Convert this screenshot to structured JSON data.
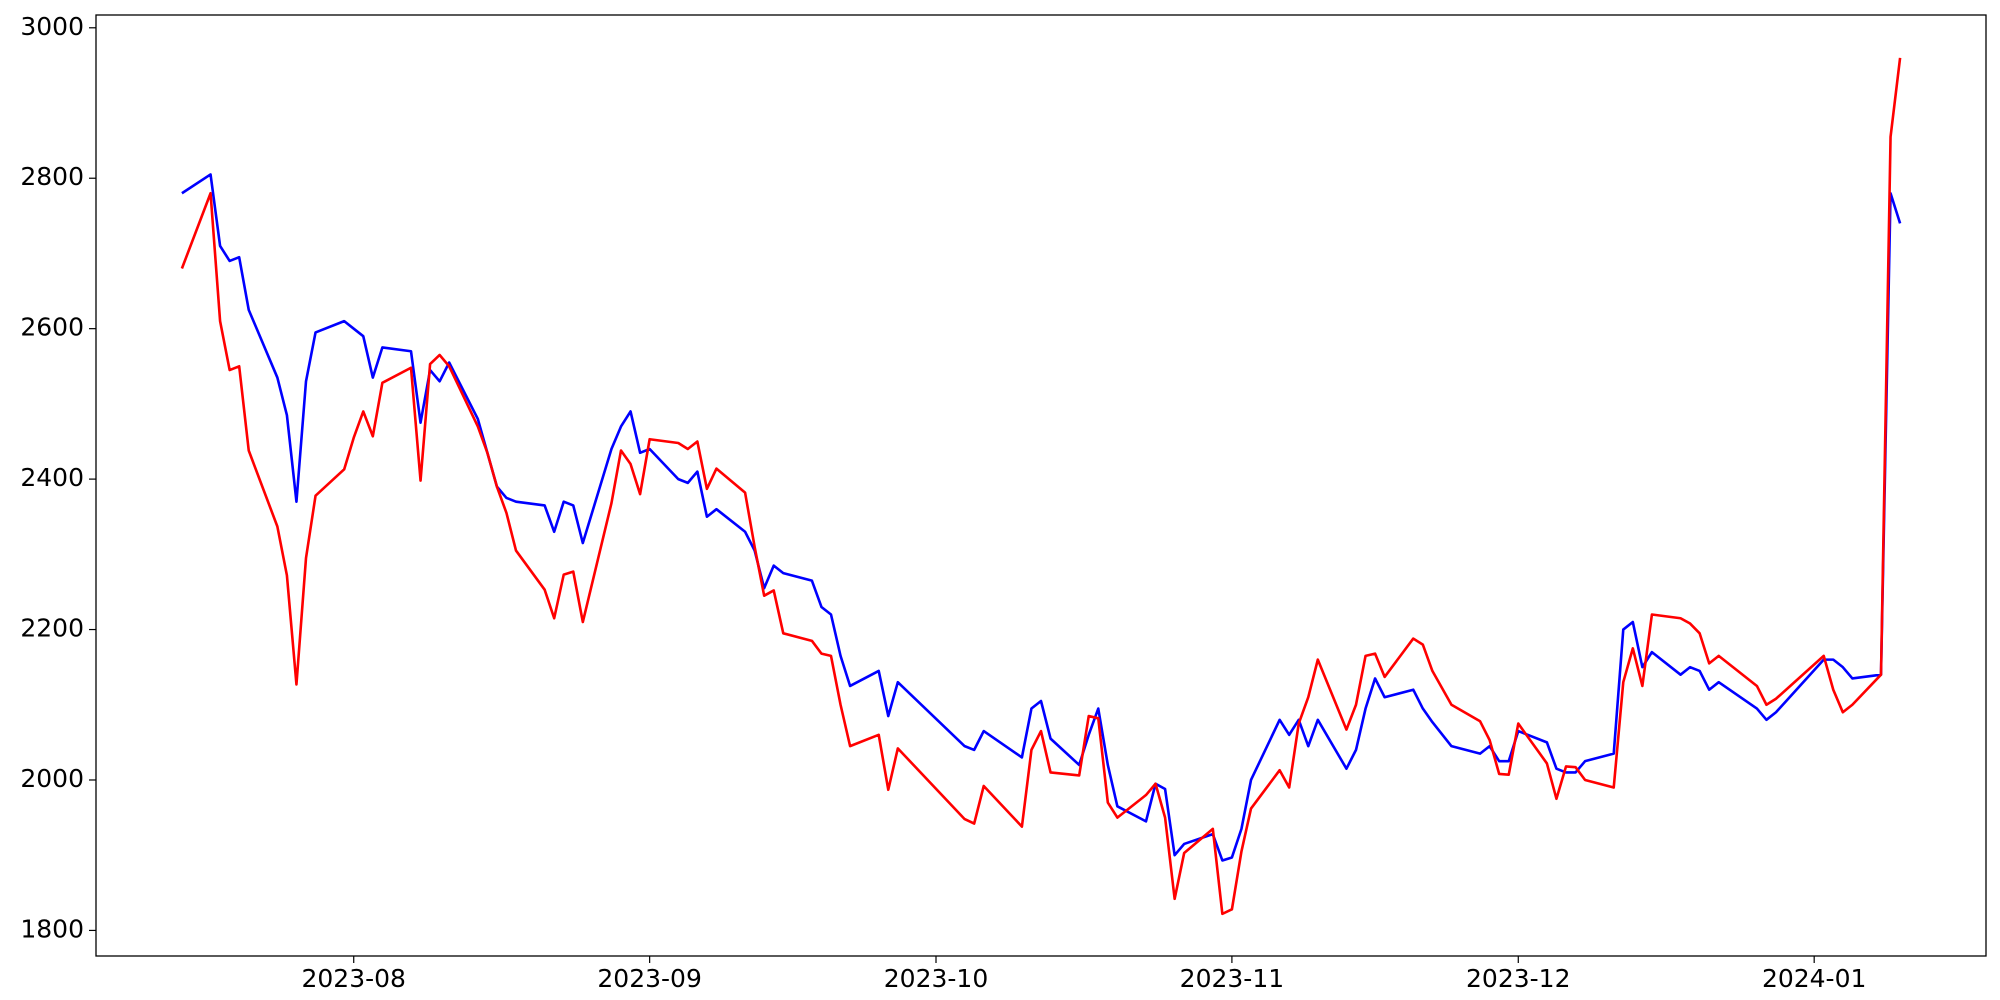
{
  "chart_data": {
    "type": "line",
    "x": [
      "2023-07-14",
      "2023-07-17",
      "2023-07-18",
      "2023-07-19",
      "2023-07-20",
      "2023-07-21",
      "2023-07-24",
      "2023-07-25",
      "2023-07-26",
      "2023-07-27",
      "2023-07-28",
      "2023-07-31",
      "2023-08-01",
      "2023-08-02",
      "2023-08-03",
      "2023-08-04",
      "2023-08-07",
      "2023-08-08",
      "2023-08-09",
      "2023-08-10",
      "2023-08-11",
      "2023-08-14",
      "2023-08-15",
      "2023-08-16",
      "2023-08-17",
      "2023-08-18",
      "2023-08-21",
      "2023-08-22",
      "2023-08-23",
      "2023-08-24",
      "2023-08-25",
      "2023-08-28",
      "2023-08-29",
      "2023-08-30",
      "2023-08-31",
      "2023-09-01",
      "2023-09-04",
      "2023-09-05",
      "2023-09-06",
      "2023-09-07",
      "2023-09-08",
      "2023-09-11",
      "2023-09-12",
      "2023-09-13",
      "2023-09-14",
      "2023-09-15",
      "2023-09-18",
      "2023-09-19",
      "2023-09-20",
      "2023-09-21",
      "2023-09-22",
      "2023-09-25",
      "2023-09-26",
      "2023-09-27",
      "2023-10-04",
      "2023-10-05",
      "2023-10-06",
      "2023-10-10",
      "2023-10-11",
      "2023-10-12",
      "2023-10-13",
      "2023-10-16",
      "2023-10-17",
      "2023-10-18",
      "2023-10-19",
      "2023-10-20",
      "2023-10-23",
      "2023-10-24",
      "2023-10-25",
      "2023-10-26",
      "2023-10-27",
      "2023-10-30",
      "2023-10-31",
      "2023-11-01",
      "2023-11-02",
      "2023-11-03",
      "2023-11-06",
      "2023-11-07",
      "2023-11-08",
      "2023-11-09",
      "2023-11-10",
      "2023-11-13",
      "2023-11-14",
      "2023-11-15",
      "2023-11-16",
      "2023-11-17",
      "2023-11-20",
      "2023-11-21",
      "2023-11-22",
      "2023-11-24",
      "2023-11-27",
      "2023-11-28",
      "2023-11-29",
      "2023-11-30",
      "2023-12-01",
      "2023-12-04",
      "2023-12-05",
      "2023-12-06",
      "2023-12-07",
      "2023-12-08",
      "2023-12-11",
      "2023-12-12",
      "2023-12-13",
      "2023-12-14",
      "2023-12-15",
      "2023-12-18",
      "2023-12-19",
      "2023-12-20",
      "2023-12-21",
      "2023-12-22",
      "2023-12-26",
      "2023-12-27",
      "2023-12-28",
      "2024-01-02",
      "2024-01-03",
      "2024-01-04",
      "2024-01-05",
      "2024-01-08",
      "2024-01-09",
      "2024-01-10"
    ],
    "series": [
      {
        "color": "#0000ff",
        "values": [
          2780,
          2805,
          2710,
          2690,
          2695,
          2625,
          2535,
          2485,
          2370,
          2530,
          2595,
          2610,
          2600,
          2590,
          2535,
          2575,
          2570,
          2475,
          2545,
          2530,
          2555,
          2480,
          2435,
          2390,
          2375,
          2370,
          2365,
          2330,
          2370,
          2365,
          2315,
          2440,
          2470,
          2490,
          2435,
          2440,
          2400,
          2395,
          2410,
          2350,
          2360,
          2330,
          2305,
          2255,
          2285,
          2275,
          2265,
          2230,
          2220,
          2165,
          2125,
          2145,
          2085,
          2130,
          2045,
          2040,
          2065,
          2030,
          2095,
          2105,
          2055,
          2020,
          2060,
          2095,
          2020,
          1965,
          1945,
          1995,
          1988,
          1900,
          1915,
          1928,
          1893,
          1897,
          1935,
          2000,
          2080,
          2060,
          2080,
          2045,
          2080,
          2015,
          2040,
          2095,
          2135,
          2110,
          2120,
          2095,
          2077,
          2045,
          2035,
          2045,
          2025,
          2025,
          2065,
          2050,
          2015,
          2010,
          2010,
          2025,
          2035,
          2200,
          2210,
          2150,
          2170,
          2140,
          2150,
          2145,
          2120,
          2130,
          2095,
          2080,
          2090,
          2160,
          2160,
          2150,
          2135,
          2140,
          2780,
          2740
        ]
      },
      {
        "color": "#ff0000",
        "values": [
          2680,
          2780,
          2610,
          2545,
          2550,
          2438,
          2337,
          2272,
          2127,
          2295,
          2378,
          2413,
          2455,
          2490,
          2457,
          2528,
          2548,
          2398,
          2553,
          2565,
          2550,
          2470,
          2435,
          2390,
          2355,
          2305,
          2253,
          2215,
          2273,
          2277,
          2210,
          2368,
          2438,
          2420,
          2380,
          2453,
          2448,
          2440,
          2450,
          2387,
          2414,
          2382,
          2310,
          2245,
          2252,
          2195,
          2185,
          2168,
          2165,
          2100,
          2045,
          2060,
          1987,
          2042,
          1948,
          1942,
          1992,
          1938,
          2040,
          2065,
          2010,
          2006,
          2085,
          2082,
          1970,
          1950,
          1980,
          1995,
          1950,
          1842,
          1903,
          1935,
          1822,
          1828,
          1905,
          1962,
          2013,
          1990,
          2075,
          2110,
          2160,
          2067,
          2100,
          2165,
          2168,
          2137,
          2188,
          2180,
          2145,
          2100,
          2078,
          2053,
          2008,
          2007,
          2075,
          2022,
          1975,
          2018,
          2017,
          2000,
          1990,
          2130,
          2175,
          2125,
          2220,
          2215,
          2208,
          2195,
          2155,
          2165,
          2125,
          2100,
          2108,
          2165,
          2120,
          2090,
          2100,
          2140,
          2855,
          2960
        ]
      }
    ],
    "xlim": [
      "2023-07-05",
      "2024-01-19"
    ],
    "xticks": [
      {
        "value": "2023-08-01",
        "label": "2023-08"
      },
      {
        "value": "2023-09-01",
        "label": "2023-09"
      },
      {
        "value": "2023-10-01",
        "label": "2023-10"
      },
      {
        "value": "2023-11-01",
        "label": "2023-11"
      },
      {
        "value": "2023-12-01",
        "label": "2023-12"
      },
      {
        "value": "2024-01-01",
        "label": "2024-01"
      }
    ],
    "ylim": [
      1766,
      3017
    ],
    "yticks": [
      1800,
      2000,
      2200,
      2400,
      2600,
      2800,
      3000
    ],
    "grid": false
  }
}
